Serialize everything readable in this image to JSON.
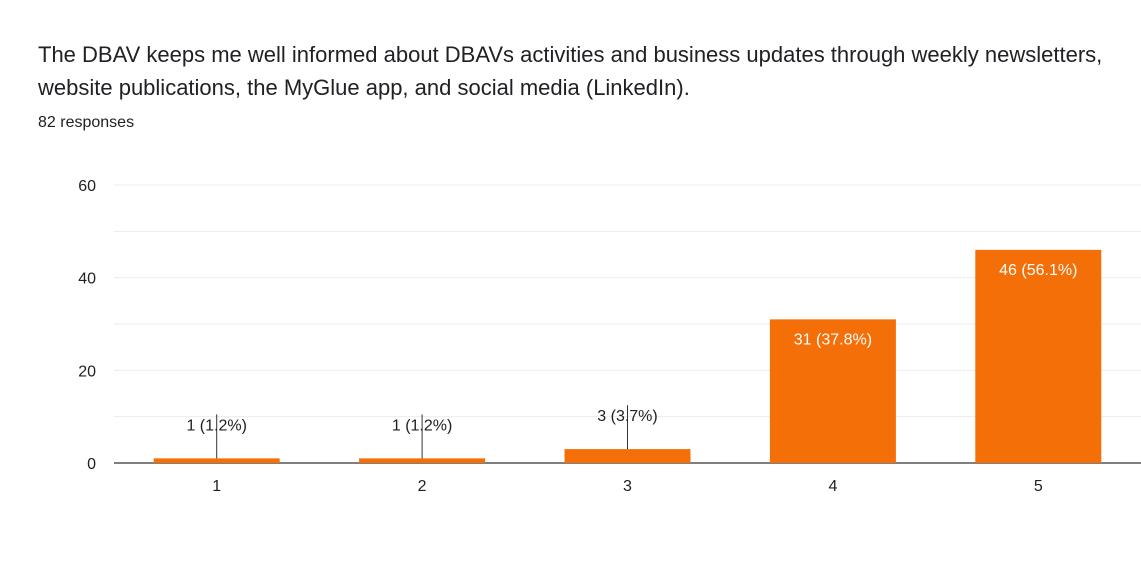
{
  "title": "The DBAV keeps me well informed about DBAVs activities and business updates through weekly newsletters, website publications, the MyGlue app, and social media (LinkedIn).",
  "responses": "82 responses",
  "chart_data": {
    "type": "bar",
    "categories": [
      "1",
      "2",
      "3",
      "4",
      "5"
    ],
    "values": [
      1,
      1,
      3,
      31,
      46
    ],
    "labels": [
      "1 (1.2%)",
      "1 (1.2%)",
      "3 (3.7%)",
      "31 (37.8%)",
      "46 (56.1%)"
    ],
    "y_ticks": [
      "0",
      "20",
      "40",
      "60"
    ],
    "ylim": [
      0,
      60
    ],
    "bar_color": "#f46f07",
    "grid": true,
    "xlabel": "",
    "ylabel": ""
  }
}
